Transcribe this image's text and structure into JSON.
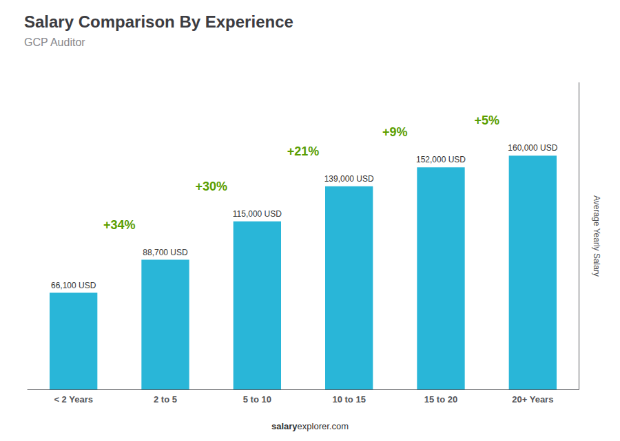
{
  "chart_data": {
    "type": "bar",
    "title": "Salary Comparison By Experience",
    "subtitle": "GCP Auditor",
    "ylabel": "Average Yearly Salary",
    "source": [
      "salary",
      "explorer.com"
    ],
    "categories": [
      "< 2 Years",
      "2 to 5",
      "5 to 10",
      "10 to 15",
      "15 to 20",
      "20+ Years"
    ],
    "values": [
      66100,
      88700,
      115000,
      139000,
      152000,
      160000
    ],
    "value_labels": [
      "66,100 USD",
      "88,700 USD",
      "115,000 USD",
      "139,000 USD",
      "152,000 USD",
      "160,000 USD"
    ],
    "data_labels": true,
    "annotations": [
      "+34%",
      "+30%",
      "+21%",
      "+9%",
      "+5%"
    ],
    "color": "#29b6d8",
    "ylim": [
      0,
      210000
    ],
    "tick_labels": "x",
    "grid": false
  }
}
